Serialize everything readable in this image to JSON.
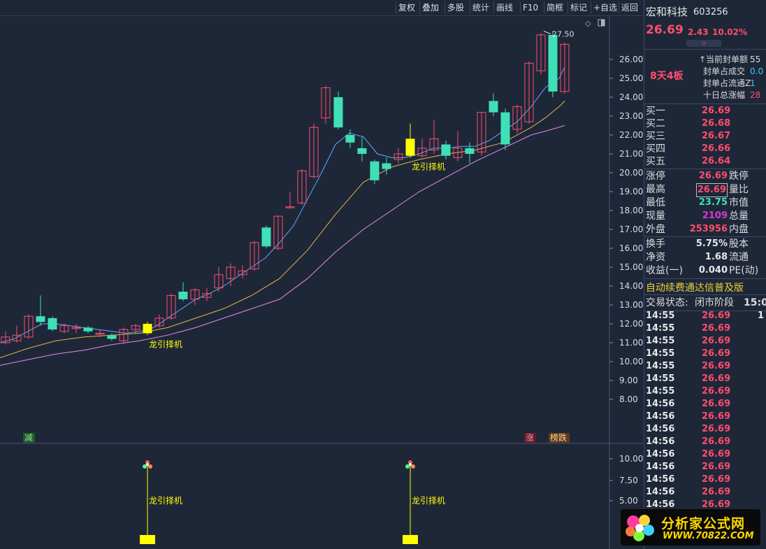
{
  "toolbar": [
    "复权",
    "叠加",
    "多股",
    "统计",
    "画线",
    "F10",
    "简框",
    "标记",
    "+自选",
    "返回"
  ],
  "stock": {
    "name": "宏和科技",
    "code": "603256",
    "price": "26.69",
    "change": "2.43",
    "pct": "10.02%"
  },
  "seal": {
    "board": "8天4板",
    "items": [
      {
        "label": "当前封单额",
        "val": "55"
      },
      {
        "label": "封单占成交",
        "val": "0.0"
      },
      {
        "label": "封单占流通Z",
        "val": "1"
      },
      {
        "label": "十日总涨幅",
        "val": "28"
      }
    ]
  },
  "bids": [
    {
      "label": "买一",
      "val": "26.69"
    },
    {
      "label": "买二",
      "val": "26.68"
    },
    {
      "label": "买三",
      "val": "26.67"
    },
    {
      "label": "买四",
      "val": "26.66"
    },
    {
      "label": "买五",
      "val": "26.64"
    }
  ],
  "stats": [
    {
      "l": "涨停",
      "v": "26.69",
      "c": "red",
      "r": "跌停"
    },
    {
      "l": "最高",
      "v": "26.69",
      "c": "red",
      "r": "量比",
      "boxed": true
    },
    {
      "l": "最低",
      "v": "23.75",
      "c": "green",
      "r": "市值"
    },
    {
      "l": "现量",
      "v": "2109",
      "c": "purple",
      "r": "总量"
    },
    {
      "l": "外盘",
      "v": "253956",
      "c": "red",
      "r": "内盘"
    }
  ],
  "stats2": [
    {
      "l": "换手",
      "v": "5.75%",
      "c": "white",
      "r": "股本"
    },
    {
      "l": "净资",
      "v": "1.68",
      "c": "white",
      "r": "流通"
    },
    {
      "l": "收益(一)",
      "v": "0.040",
      "c": "white",
      "r": "PE(动)"
    }
  ],
  "ad": "自动续费通达信普及版",
  "state": {
    "label": "交易状态:",
    "value": "闭市阶段",
    "time": "15:0"
  },
  "ticks": [
    {
      "t": "14:55",
      "p": "26.69",
      "v": "1"
    },
    {
      "t": "14:55",
      "p": "26.69",
      "v": ""
    },
    {
      "t": "14:55",
      "p": "26.69",
      "v": ""
    },
    {
      "t": "14:55",
      "p": "26.69",
      "v": ""
    },
    {
      "t": "14:55",
      "p": "26.69",
      "v": ""
    },
    {
      "t": "14:55",
      "p": "26.69",
      "v": ""
    },
    {
      "t": "14:55",
      "p": "26.69",
      "v": ""
    },
    {
      "t": "14:56",
      "p": "26.69",
      "v": ""
    },
    {
      "t": "14:56",
      "p": "26.69",
      "v": ""
    },
    {
      "t": "14:56",
      "p": "26.69",
      "v": ""
    },
    {
      "t": "14:56",
      "p": "26.69",
      "v": ""
    },
    {
      "t": "14:56",
      "p": "26.69",
      "v": ""
    },
    {
      "t": "14:56",
      "p": "26.69",
      "v": ""
    },
    {
      "t": "14:56",
      "p": "26.69",
      "v": ""
    },
    {
      "t": "14:56",
      "p": "26.69",
      "v": ""
    },
    {
      "t": "14:56",
      "p": "26.69",
      "v": ""
    }
  ],
  "chart": {
    "yticks": [
      "26.00",
      "25.00",
      "24.00",
      "23.00",
      "22.00",
      "21.00",
      "20.00",
      "19.00",
      "18.00",
      "17.00",
      "16.00",
      "15.00",
      "14.00",
      "13.00",
      "12.00",
      "11.00",
      "10.00",
      "9.00",
      "8.00"
    ],
    "yticks2": [
      "10.00",
      "7.50",
      "5.00"
    ],
    "high_label": "27.50",
    "signal_label": "龙引择机",
    "tags": {
      "left": "减",
      "zhang": "涨",
      "bang": "榜跌"
    }
  },
  "logo": {
    "text": "分析家公式网",
    "url": "WWW.70822.COM"
  },
  "colors": {
    "up": "#ff4d6d",
    "down": "#3fe0b8",
    "bg": "#1e2738",
    "ma5": "#5fa8ff",
    "ma10": "#e8b24a",
    "ma20": "#e48ce8",
    "signal": "#ffff00"
  }
}
